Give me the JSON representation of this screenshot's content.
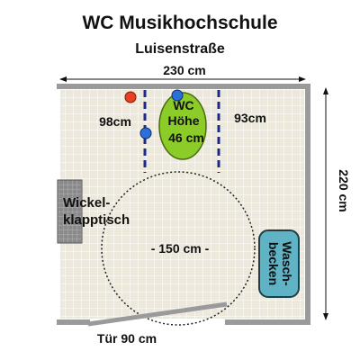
{
  "title": "WC Musikhochschule",
  "subtitle": "Luisenstraße",
  "dimensions": {
    "width_label": "230 cm",
    "height_label": "220 cm",
    "turning_circle_label": "- 150 cm -",
    "door_label": "Tür 90 cm",
    "left_clearance_label": "98cm",
    "right_clearance_label": "93cm"
  },
  "toilet": {
    "line1": "WC",
    "line2": "Höhe",
    "line3": "46 cm",
    "color": "#8ccc28"
  },
  "changing_table": {
    "line1": "Wickel-",
    "line2": "klapptisch"
  },
  "sink": {
    "line1": "Wasch-",
    "line2": "becken",
    "color": "#5fb3c4"
  },
  "colors": {
    "floor": "#ece9dc",
    "wall": "#9a9a9a",
    "grab_bar": "#1b2a8a",
    "red_button": "#e84020",
    "blue_button": "#2d6fd8"
  },
  "icons": [
    "red-emergency-button-icon",
    "blue-button-icon"
  ]
}
